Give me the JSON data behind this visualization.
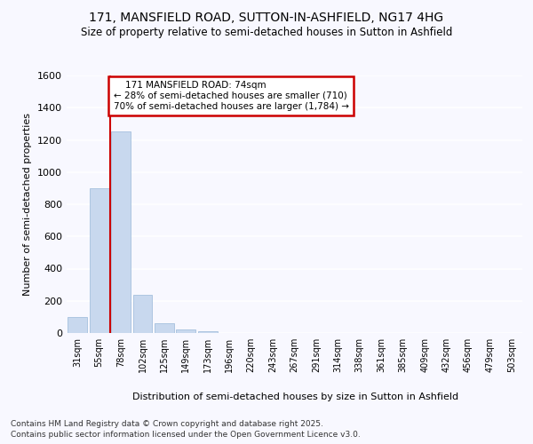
{
  "title1": "171, MANSFIELD ROAD, SUTTON-IN-ASHFIELD, NG17 4HG",
  "title2": "Size of property relative to semi-detached houses in Sutton in Ashfield",
  "xlabel": "Distribution of semi-detached houses by size in Sutton in Ashfield",
  "ylabel": "Number of semi-detached properties",
  "categories": [
    "31sqm",
    "55sqm",
    "78sqm",
    "102sqm",
    "125sqm",
    "149sqm",
    "173sqm",
    "196sqm",
    "220sqm",
    "243sqm",
    "267sqm",
    "291sqm",
    "314sqm",
    "338sqm",
    "361sqm",
    "385sqm",
    "409sqm",
    "432sqm",
    "456sqm",
    "479sqm",
    "503sqm"
  ],
  "values": [
    100,
    900,
    1250,
    240,
    60,
    20,
    10,
    0,
    0,
    0,
    0,
    0,
    0,
    0,
    0,
    0,
    0,
    0,
    0,
    0,
    0
  ],
  "bar_color": "#c8d8ee",
  "bar_edgecolor": "#9ab8d8",
  "marker_label": "171 MANSFIELD ROAD: 74sqm",
  "pct_smaller": 28,
  "n_smaller": 710,
  "pct_larger": 70,
  "n_larger": 1784,
  "vline_color": "#cc0000",
  "annotation_box_edgecolor": "#cc0000",
  "ylim": [
    0,
    1600
  ],
  "yticks": [
    0,
    200,
    400,
    600,
    800,
    1000,
    1200,
    1400,
    1600
  ],
  "bg_color": "#f8f8ff",
  "grid_color": "#ffffff",
  "footer1": "Contains HM Land Registry data © Crown copyright and database right 2025.",
  "footer2": "Contains public sector information licensed under the Open Government Licence v3.0."
}
